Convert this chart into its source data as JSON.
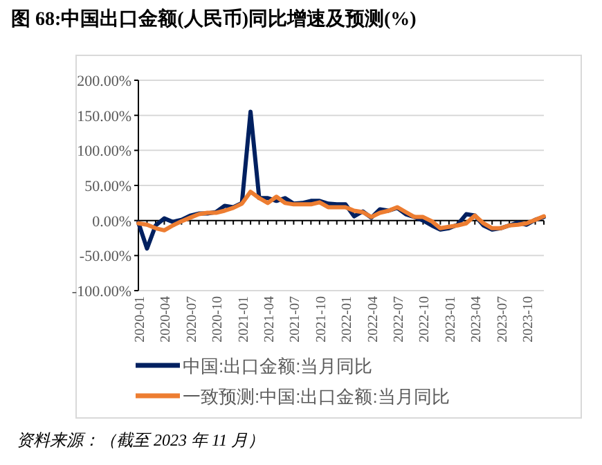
{
  "chart_data": {
    "type": "line",
    "title": "图 68:中国出口金额(人民币)同比增速及预测(%)",
    "categories": [
      "2020-01",
      null,
      null,
      "2020-04",
      null,
      null,
      "2020-07",
      null,
      null,
      "2020-10",
      null,
      null,
      "2021-01",
      null,
      null,
      "2021-04",
      null,
      null,
      "2021-07",
      null,
      null,
      "2021-10",
      null,
      null,
      "2022-01",
      null,
      null,
      "2022-04",
      null,
      null,
      "2022-07",
      null,
      null,
      "2022-10",
      null,
      null,
      "2023-01",
      null,
      null,
      "2023-04",
      null,
      null,
      "2023-07",
      null,
      null,
      "2023-10",
      null,
      null
    ],
    "series": [
      {
        "name": "中国:出口金额:当月同比",
        "color": "#002060",
        "values": [
          -3,
          -40,
          -7,
          3,
          -2,
          1,
          7,
          10,
          10,
          12,
          21,
          19,
          25,
          155,
          32,
          32,
          28,
          32,
          24,
          25,
          28,
          28,
          24,
          23,
          23,
          6,
          13,
          4,
          16,
          14,
          18,
          9,
          5,
          0,
          -7,
          -13,
          -11,
          -6,
          9,
          7,
          -7,
          -13,
          -11,
          -7,
          -3,
          -6,
          1,
          5
        ]
      },
      {
        "name": "一致预测:中国:出口金额:当月同比",
        "color": "#ed7d31",
        "values": [
          -4,
          -6,
          -11,
          -14,
          -7,
          -1,
          4,
          9,
          11,
          11,
          14,
          18,
          24,
          41,
          32,
          25,
          34,
          25,
          23,
          23,
          23,
          26,
          19,
          19,
          19,
          14,
          12,
          5,
          11,
          14,
          19,
          12,
          5,
          5,
          -1,
          -11,
          -9,
          -7,
          -4,
          7,
          -4,
          -11,
          -11,
          -7,
          -6,
          -4,
          1,
          6
        ]
      }
    ],
    "ylim": [
      -100,
      200
    ],
    "yticks": [
      {
        "value": -100,
        "label": "-100.00%"
      },
      {
        "value": -50,
        "label": "-50.00%"
      },
      {
        "value": 0,
        "label": "0.00%"
      },
      {
        "value": 50,
        "label": "50.00%"
      },
      {
        "value": 100,
        "label": "100.00%"
      },
      {
        "value": 150,
        "label": "150.00%"
      },
      {
        "value": 200,
        "label": "200.00%"
      }
    ],
    "grid": "y",
    "legend": "bottom",
    "annotations": [
      "资料来源：（截至 2023 年 11 月）"
    ]
  }
}
